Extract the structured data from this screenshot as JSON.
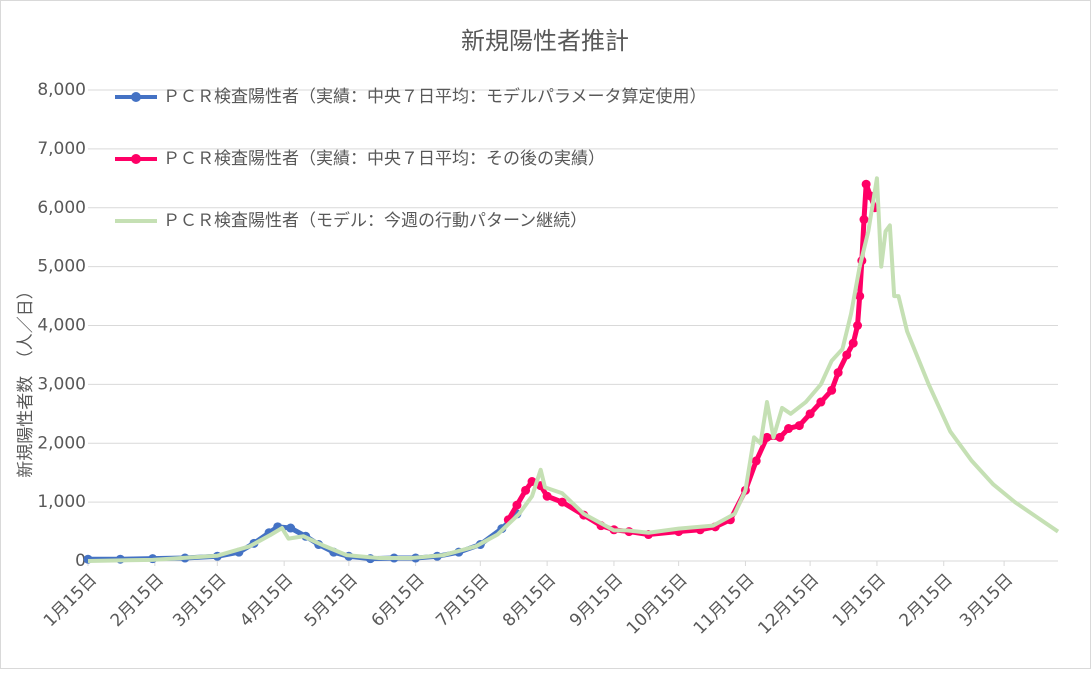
{
  "chart_data": {
    "type": "line",
    "title": "新規陽性者推計",
    "y_label": "新規陽性者数　（人／日）",
    "xlim": [
      0,
      450
    ],
    "xticks": [
      {
        "value": 0,
        "label": "1月15日"
      },
      {
        "value": 31,
        "label": "2月15日"
      },
      {
        "value": 60,
        "label": "3月15日"
      },
      {
        "value": 91,
        "label": "4月15日"
      },
      {
        "value": 121,
        "label": "5月15日"
      },
      {
        "value": 152,
        "label": "6月15日"
      },
      {
        "value": 182,
        "label": "7月15日"
      },
      {
        "value": 213,
        "label": "8月15日"
      },
      {
        "value": 244,
        "label": "9月15日"
      },
      {
        "value": 274,
        "label": "10月15日"
      },
      {
        "value": 305,
        "label": "11月15日"
      },
      {
        "value": 335,
        "label": "12月15日"
      },
      {
        "value": 366,
        "label": "1月15日"
      },
      {
        "value": 397,
        "label": "2月15日"
      },
      {
        "value": 425,
        "label": "3月15日"
      }
    ],
    "ylim": [
      0,
      8000
    ],
    "yticks": [
      0,
      {
        "value": 1000,
        "label": "1,000"
      },
      {
        "value": 2000,
        "label": "2,000"
      },
      {
        "value": 3000,
        "label": "3,000"
      },
      {
        "value": 4000,
        "label": "4,000"
      },
      {
        "value": 5000,
        "label": "5,000"
      },
      {
        "value": 6000,
        "label": "6,000"
      },
      {
        "value": 7000,
        "label": "7,000"
      },
      {
        "value": 8000,
        "label": "8,000"
      }
    ],
    "grid": true,
    "series": [
      {
        "name": "ＰＣＲ検査陽性者（実績：中央７日平均：モデルパラメータ算定使用）",
        "color": "#4472c4",
        "marker": true,
        "x": [
          0,
          15,
          30,
          45,
          60,
          70,
          77,
          84,
          88,
          94,
          101,
          107,
          114,
          121,
          131,
          142,
          152,
          162,
          172,
          182,
          192,
          199
        ],
        "values": [
          30,
          30,
          40,
          50,
          80,
          150,
          300,
          480,
          580,
          560,
          420,
          280,
          150,
          80,
          40,
          50,
          50,
          80,
          150,
          280,
          550,
          800
        ]
      },
      {
        "name": "ＰＣＲ検査陽性者（実績：中央７日平均：その後の実績）",
        "color": "#ff0066",
        "marker": true,
        "x": [
          195,
          199,
          203,
          206,
          210,
          213,
          220,
          230,
          238,
          244,
          251,
          260,
          274,
          284,
          291,
          298,
          305,
          310,
          315,
          321,
          325,
          330,
          335,
          340,
          345,
          348,
          352,
          355,
          357,
          358,
          359,
          360,
          361,
          363,
          365
        ],
        "values": [
          700,
          950,
          1200,
          1350,
          1280,
          1100,
          1000,
          780,
          600,
          530,
          500,
          450,
          500,
          530,
          580,
          700,
          1200,
          1700,
          2100,
          2100,
          2250,
          2300,
          2500,
          2700,
          2900,
          3200,
          3500,
          3700,
          4000,
          4500,
          5100,
          5800,
          6400,
          6200,
          6000
        ]
      },
      {
        "name": "ＰＣＲ検査陽性者（モデル：今週の行動パターン継続）",
        "color": "#c5e0b4",
        "marker": false,
        "x": [
          0,
          30,
          60,
          75,
          85,
          90,
          93,
          100,
          110,
          120,
          135,
          150,
          165,
          180,
          190,
          200,
          206,
          210,
          212,
          220,
          230,
          244,
          250,
          260,
          274,
          290,
          300,
          305,
          309,
          312,
          315,
          318,
          322,
          326,
          333,
          340,
          345,
          350,
          354,
          358,
          362,
          366,
          368,
          370,
          372,
          374,
          376,
          380,
          390,
          400,
          410,
          420,
          430,
          440,
          450
        ],
        "values": [
          0,
          20,
          90,
          250,
          450,
          560,
          380,
          420,
          250,
          100,
          50,
          50,
          100,
          250,
          450,
          800,
          1100,
          1550,
          1250,
          1150,
          800,
          520,
          520,
          480,
          550,
          600,
          800,
          1200,
          2100,
          2000,
          2700,
          2100,
          2600,
          2500,
          2700,
          3000,
          3400,
          3600,
          4200,
          5000,
          5600,
          6500,
          5000,
          5600,
          5700,
          4500,
          4500,
          3900,
          3000,
          2200,
          1700,
          1300,
          1000,
          750,
          500
        ]
      }
    ]
  }
}
